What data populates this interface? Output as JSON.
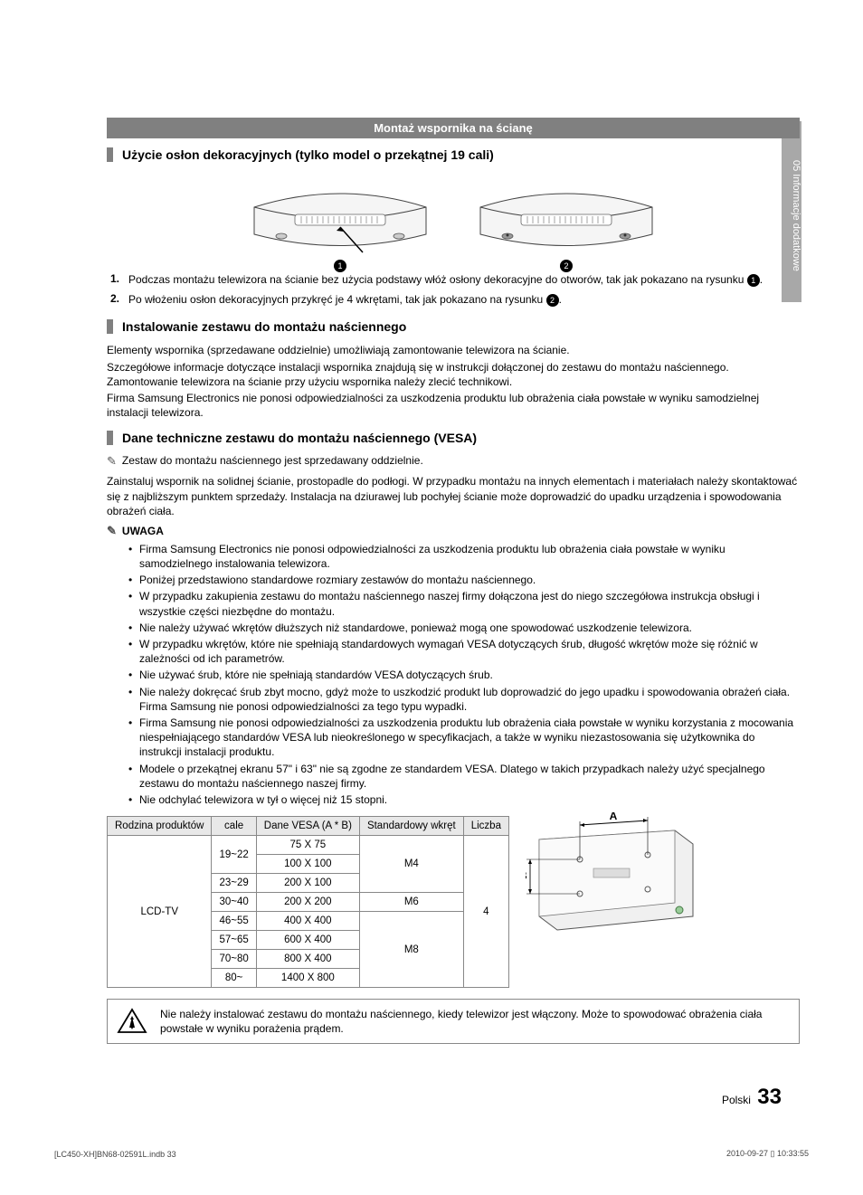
{
  "sideTab": "05   Informacje dodatkowe",
  "titleBar": "Montaż wspornika na ścianę",
  "section1": {
    "heading": "Użycie osłon dekoracyjnych (tylko model o przekątnej 19 cali)",
    "diagram_labels": [
      "1",
      "2"
    ],
    "steps": [
      {
        "num": "1.",
        "pre": "Podczas montażu telewizora na ścianie bez użycia podstawy włóż osłony dekoracyjne do otworów, tak jak pokazano na rysunku ",
        "circ": "1",
        "post": "."
      },
      {
        "num": "2.",
        "pre": "Po włożeniu osłon dekoracyjnych przykręć je 4 wkrętami, tak jak pokazano na rysunku ",
        "circ": "2",
        "post": "."
      }
    ]
  },
  "section2": {
    "heading": "Instalowanie zestawu do montażu naściennego",
    "paras": [
      "Elementy wspornika (sprzedawane oddzielnie) umożliwiają zamontowanie telewizora na ścianie.",
      "Szczegółowe informacje dotyczące instalacji wspornika znajdują się w instrukcji dołączonej do zestawu do montażu naściennego. Zamontowanie telewizora na ścianie przy użyciu wspornika należy zlecić technikowi.",
      "Firma Samsung Electronics nie ponosi odpowiedzialności za uszkodzenia produktu lub obrażenia ciała powstałe w wyniku samodzielnej instalacji telewizora."
    ]
  },
  "section3": {
    "heading": "Dane techniczne zestawu do montażu naściennego (VESA)",
    "note1": "Zestaw do montażu naściennego jest sprzedawany oddzielnie.",
    "install_para": "Zainstaluj wspornik na solidnej ścianie, prostopadle do podłogi. W przypadku montażu na innych elementach i materiałach należy skontaktować się z najbliższym punktem sprzedaży. Instalacja na dziurawej lub pochyłej ścianie może doprowadzić do upadku urządzenia i spowodowania obrażeń ciała.",
    "uwaga_label": "UWAGA",
    "bullets": [
      "Firma Samsung Electronics nie ponosi odpowiedzialności za uszkodzenia produktu lub obrażenia ciała powstałe w wyniku samodzielnego instalowania telewizora.",
      "Poniżej przedstawiono standardowe rozmiary zestawów do montażu naściennego.",
      "W przypadku zakupienia zestawu do montażu naściennego naszej firmy dołączona jest do niego szczegółowa instrukcja obsługi i wszystkie części niezbędne do montażu.",
      "Nie należy używać wkrętów dłuższych niż standardowe, ponieważ mogą one spowodować uszkodzenie telewizora.",
      "W przypadku wkrętów, które nie spełniają standardowych wymagań VESA dotyczących śrub, długość wkrętów może się różnić w zależności od ich parametrów.",
      "Nie używać śrub, które nie spełniają standardów VESA dotyczących śrub.",
      "Nie należy dokręcać śrub zbyt mocno, gdyż może to uszkodzić produkt lub doprowadzić do jego upadku i spowodowania obrażeń ciała. Firma Samsung nie ponosi odpowiedzialności za tego typu wypadki.",
      "Firma Samsung nie ponosi odpowiedzialności za uszkodzenia produktu lub obrażenia ciała powstałe w wyniku korzystania z mocowania niespełniającego standardów VESA lub nieokreślonego w specyfikacjach, a także w wyniku niezastosowania się użytkownika do instrukcji instalacji produktu.",
      "Modele o przekątnej ekranu 57\" i 63\" nie są zgodne ze standardem VESA. Dlatego w takich przypadkach należy użyć specjalnego zestawu do montażu naściennego naszej firmy.",
      "Nie odchylać telewizora w tył o więcej niż 15 stopni."
    ],
    "table": {
      "headers": [
        "Rodzina produktów",
        "cale",
        "Dane VESA (A * B)",
        "Standardowy wkręt",
        "Liczba"
      ],
      "family": "LCD-TV",
      "count": "4",
      "rows": [
        {
          "inch": "19~22",
          "vesa": [
            "75 X 75",
            "100 X 100"
          ],
          "screw": "M4"
        },
        {
          "inch": "23~29",
          "vesa": [
            "200 X 100"
          ],
          "screw": "M4"
        },
        {
          "inch": "30~40",
          "vesa": [
            "200 X 200"
          ],
          "screw": "M6"
        },
        {
          "inch": "46~55",
          "vesa": [
            "400 X 400"
          ],
          "screw": "M8"
        },
        {
          "inch": "57~65",
          "vesa": [
            "600 X 400"
          ],
          "screw": "M8"
        },
        {
          "inch": "70~80",
          "vesa": [
            "800 X 400"
          ],
          "screw": "M8"
        },
        {
          "inch": "80~",
          "vesa": [
            "1400 X 800"
          ],
          "screw": "M8"
        }
      ],
      "diagram_labels": {
        "A": "A",
        "B": "B"
      }
    }
  },
  "warning": "Nie należy instalować zestawu do montażu naściennego, kiedy telewizor jest włączony. Może to spowodować obrażenia ciała powstałe w wyniku porażenia prądem.",
  "pageLabel": "Polski",
  "pageNum": "33",
  "footerLeft": "[LC450-XH]BN68-02591L.indb   33",
  "footerRight": "2010-09-27   ▯ 10:33:55"
}
